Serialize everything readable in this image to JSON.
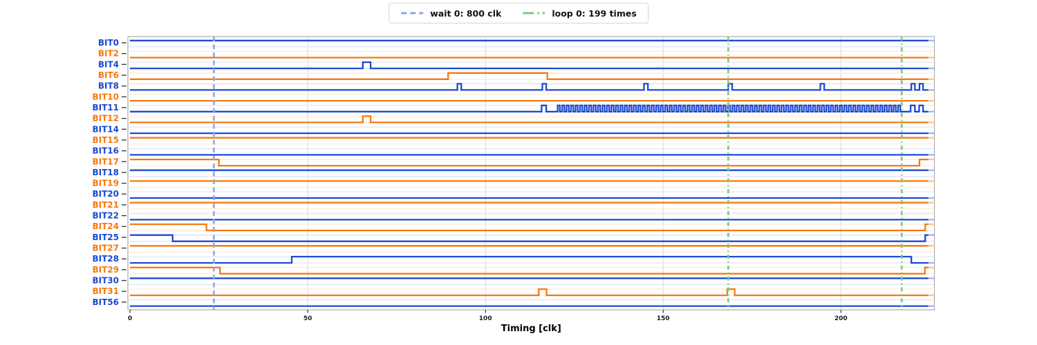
{
  "palette": {
    "blue": "#1b49d0",
    "orange": "#f5790f",
    "blue_faint": "#d9e1f7",
    "orange_faint": "#fce8d2",
    "blue_fade": "#9db6ee",
    "orange_fade": "#fac493",
    "wait_marker": "#8fa7e6",
    "loop_marker": "#7fc97f",
    "grid": "#dadada",
    "spine": "#9a9a9a",
    "tick": "#333333",
    "tick_text": "#1a1a1a"
  },
  "legend": {
    "items": [
      {
        "name": "wait-0",
        "label": "wait 0: 800 clk",
        "style": "dashed",
        "color_key": "wait_marker"
      },
      {
        "name": "loop-0",
        "label": "loop 0: 199 times",
        "style": "dashdot",
        "color_key": "loop_marker"
      }
    ]
  },
  "chart_data": {
    "type": "line",
    "subtype": "digital-timing-diagram",
    "title": "",
    "xlabel": "Timing [clk]",
    "ylabel": "",
    "xticks": [
      0,
      50,
      100,
      150,
      200
    ],
    "xlim": [
      -0.6,
      226.3
    ],
    "data_end": 224.6,
    "fade_end": 226.3,
    "grid": "vertical-only",
    "legend_position": "top-center-outside",
    "markers": [
      {
        "kind": "wait",
        "label": "wait 0: 800 clk",
        "t": 23.6
      },
      {
        "kind": "loop",
        "label": "loop 0: 199 times",
        "t": 168.3
      },
      {
        "kind": "loop",
        "label": "loop 0: 199 times",
        "t": 217.1
      }
    ],
    "signals": [
      {
        "name": "BIT0",
        "color": "blue",
        "initial": 1,
        "edges": []
      },
      {
        "name": "BIT2",
        "color": "orange",
        "initial": 0,
        "edges": []
      },
      {
        "name": "BIT4",
        "color": "blue",
        "initial": 0,
        "edges": [
          [
            65.5,
            1
          ],
          [
            67.7,
            0
          ]
        ]
      },
      {
        "name": "BIT6",
        "color": "orange",
        "initial": 0,
        "edges": [
          [
            89.5,
            1
          ],
          [
            117.4,
            0
          ]
        ]
      },
      {
        "name": "BIT8",
        "color": "blue",
        "initial": 0,
        "edges": [
          [
            92.1,
            1
          ],
          [
            93.2,
            0
          ],
          [
            116.0,
            1
          ],
          [
            117.1,
            0
          ],
          [
            144.6,
            1
          ],
          [
            145.7,
            0
          ],
          [
            168.3,
            1
          ],
          [
            169.4,
            0
          ],
          [
            194.2,
            1
          ],
          [
            195.3,
            0
          ],
          [
            219.8,
            1
          ],
          [
            220.8,
            0
          ],
          [
            222.1,
            1
          ],
          [
            223.1,
            0
          ]
        ]
      },
      {
        "name": "BIT10",
        "color": "orange",
        "initial": 0,
        "edges": []
      },
      {
        "name": "BIT11",
        "color": "blue",
        "initial": 0,
        "edges": [
          [
            115.8,
            1
          ],
          [
            117.1,
            0
          ],
          [
            219.6,
            1
          ],
          [
            220.8,
            0
          ],
          [
            222.0,
            1
          ],
          [
            223.1,
            0
          ]
        ],
        "osc": {
          "start": 120.3,
          "end": 217.2,
          "period": 1.26
        }
      },
      {
        "name": "BIT12",
        "color": "orange",
        "initial": 0,
        "edges": [
          [
            65.5,
            1
          ],
          [
            67.7,
            0
          ]
        ]
      },
      {
        "name": "BIT14",
        "color": "blue",
        "initial": 0,
        "edges": []
      },
      {
        "name": "BIT15",
        "color": "orange",
        "initial": 1,
        "edges": []
      },
      {
        "name": "BIT16",
        "color": "blue",
        "initial": 0,
        "edges": []
      },
      {
        "name": "BIT17",
        "color": "orange",
        "initial": 1,
        "edges": [
          [
            25.0,
            0
          ],
          [
            222.1,
            1
          ]
        ]
      },
      {
        "name": "BIT18",
        "color": "blue",
        "initial": 1,
        "edges": []
      },
      {
        "name": "BIT19",
        "color": "orange",
        "initial": 1,
        "edges": []
      },
      {
        "name": "BIT20",
        "color": "blue",
        "initial": 0,
        "edges": []
      },
      {
        "name": "BIT21",
        "color": "orange",
        "initial": 1,
        "edges": []
      },
      {
        "name": "BIT22",
        "color": "blue",
        "initial": 0,
        "edges": []
      },
      {
        "name": "BIT24",
        "color": "orange",
        "initial": 1,
        "edges": [
          [
            21.5,
            0
          ],
          [
            223.7,
            1
          ]
        ]
      },
      {
        "name": "BIT25",
        "color": "blue",
        "initial": 1,
        "edges": [
          [
            12.0,
            0
          ],
          [
            223.7,
            1
          ]
        ]
      },
      {
        "name": "BIT27",
        "color": "orange",
        "initial": 1,
        "edges": []
      },
      {
        "name": "BIT28",
        "color": "blue",
        "initial": 0,
        "edges": [
          [
            45.5,
            1
          ],
          [
            219.8,
            0
          ]
        ]
      },
      {
        "name": "BIT29",
        "color": "orange",
        "initial": 1,
        "edges": [
          [
            25.3,
            0
          ],
          [
            223.6,
            1
          ]
        ]
      },
      {
        "name": "BIT30",
        "color": "blue",
        "initial": 1,
        "edges": []
      },
      {
        "name": "BIT31",
        "color": "orange",
        "initial": 0,
        "edges": [
          [
            115.0,
            1
          ],
          [
            117.2,
            0
          ],
          [
            168.0,
            1
          ],
          [
            170.1,
            0
          ]
        ]
      },
      {
        "name": "BIT56",
        "color": "blue",
        "initial": 0,
        "edges": []
      }
    ]
  }
}
